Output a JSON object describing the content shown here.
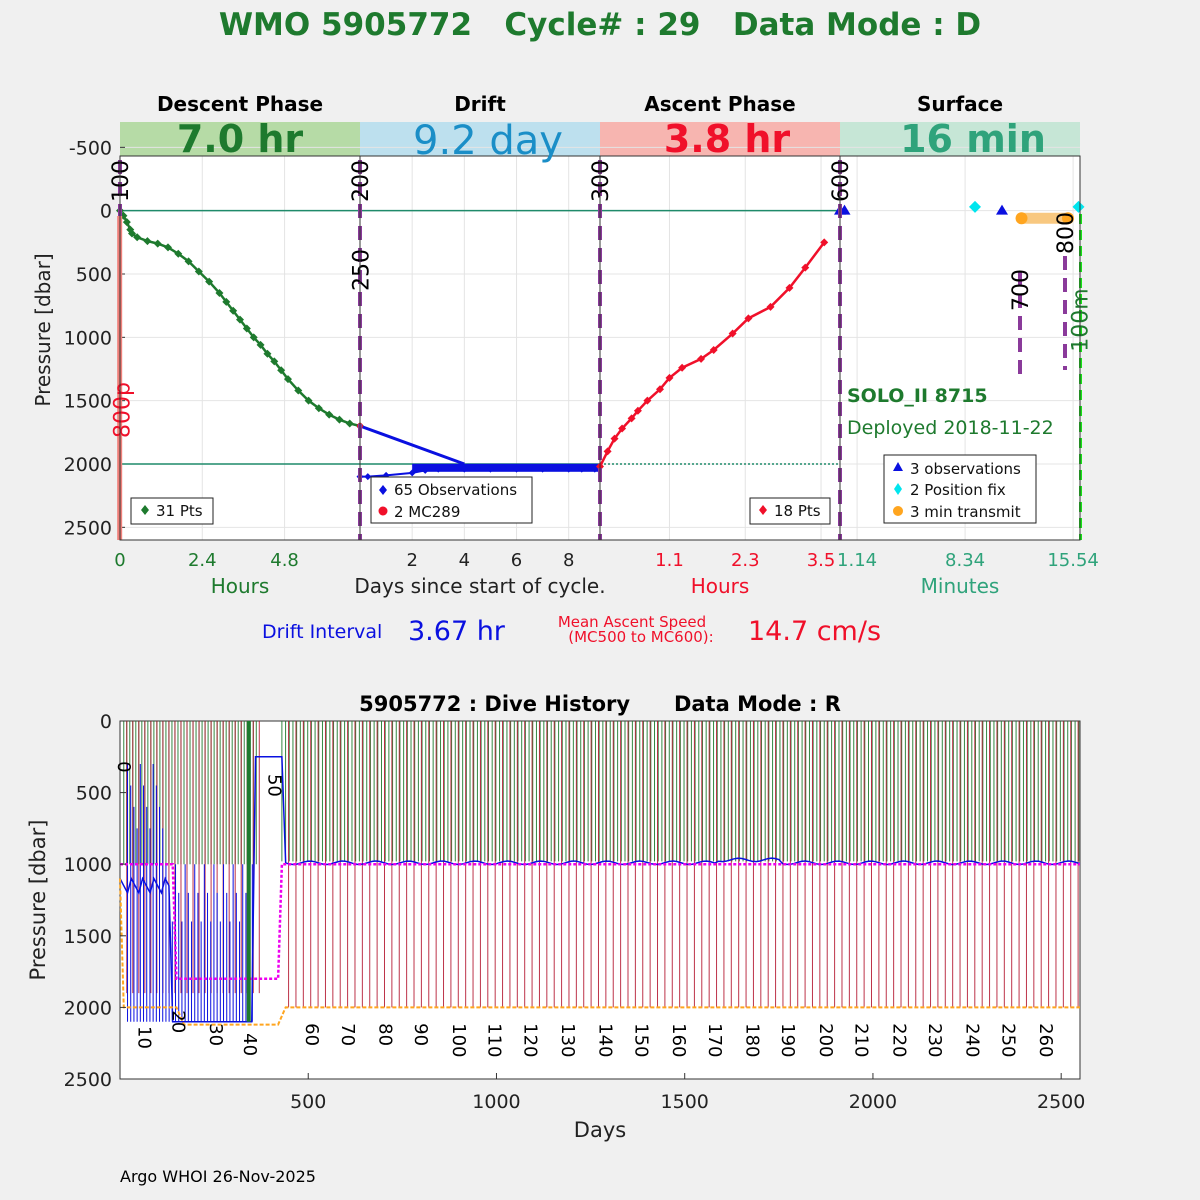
{
  "header": {
    "title": "WMO 5905772   Cycle# : 29   Data Mode : D",
    "title_color": "#1e7a2e"
  },
  "phases": [
    {
      "name": "Descent Phase",
      "duration": "7.0 hr",
      "band_color": "#b6dba6",
      "text_color": "#1e7a2e"
    },
    {
      "name": "Drift",
      "duration": "9.2 day",
      "band_color": "#bde0ee",
      "text_color": "#1a8ec7"
    },
    {
      "name": "Ascent Phase",
      "duration": "3.8 hr",
      "band_color": "#f7b5b0",
      "text_color": "#f0102a"
    },
    {
      "name": "Surface",
      "duration": "16 min",
      "band_color": "#c6e6d6",
      "text_color": "#2fa37b"
    }
  ],
  "chart_data": [
    {
      "type": "line",
      "panel": "cycle",
      "ylabel": "Pressure [dbar]",
      "ylim": [
        2600,
        -700
      ],
      "yticks": [
        "-500",
        "0",
        "500",
        "1000",
        "1500",
        "2000",
        "2500"
      ],
      "ytick_values": [
        -500,
        0,
        500,
        1000,
        1500,
        2000,
        2500
      ],
      "xlabel_center": "Days since start of cycle.",
      "grid": true,
      "reference_lines": {
        "surface": 0,
        "park": 2000
      },
      "panels": [
        {
          "name": "Descent",
          "xlabel": "Hours",
          "xlabel_color": "#1e7a2e",
          "xlim": [
            0,
            7.0
          ],
          "xticks": [
            0,
            2.4,
            4.8
          ],
          "xtick_labels": [
            "0",
            "2.4",
            "4.8"
          ],
          "color": "#1e7a2e",
          "legend": "31 Pts",
          "legend_color": "#1e7a2e",
          "legend_marker": "diamond",
          "x": [
            0,
            0.1,
            0.2,
            0.3,
            0.35,
            0.5,
            0.8,
            1.1,
            1.4,
            1.7,
            2.0,
            2.3,
            2.6,
            2.9,
            3.1,
            3.3,
            3.5,
            3.7,
            3.9,
            4.1,
            4.3,
            4.5,
            4.7,
            4.9,
            5.2,
            5.5,
            5.8,
            6.1,
            6.4,
            6.7,
            7.0
          ],
          "y": [
            0,
            40,
            90,
            150,
            180,
            210,
            240,
            260,
            290,
            340,
            400,
            480,
            560,
            650,
            720,
            790,
            860,
            930,
            1000,
            1060,
            1130,
            1190,
            1260,
            1330,
            1420,
            1500,
            1560,
            1610,
            1650,
            1680,
            1700
          ]
        },
        {
          "name": "Drift",
          "xlim": [
            0,
            9.2
          ],
          "xticks": [
            2,
            4,
            6,
            8
          ],
          "xtick_labels": [
            "2",
            "4",
            "6",
            "8"
          ],
          "color": "#0a10e0",
          "legend": [
            "65 Observations",
            "2 MC289"
          ],
          "legend_colors": [
            "#0a10e0",
            "#f0102a"
          ],
          "legend_markers": [
            "diamond",
            "circle"
          ],
          "x": [
            0,
            0.3,
            1.0,
            2.0,
            2.5,
            3.0,
            3.5,
            4.0,
            4.5,
            5.0,
            5.5,
            6.0,
            6.5,
            7.0,
            7.5,
            8.0,
            8.5,
            9.0,
            9.2
          ],
          "y": [
            2100,
            2100,
            2090,
            2070,
            2050,
            2040,
            2030,
            2040,
            2030,
            2040,
            2030,
            2040,
            2030,
            2040,
            2030,
            2040,
            2040,
            2040,
            2020
          ],
          "slope_line": {
            "x": [
              0,
              4.0
            ],
            "y": [
              1700,
              2000
            ]
          },
          "bar_band": {
            "x": [
              2.0,
              9.2
            ],
            "y": 2030
          },
          "mc289": {
            "x": [
              0,
              9.2
            ],
            "y": [
              1700,
              2020
            ]
          }
        },
        {
          "name": "Ascent",
          "xlabel": "Hours",
          "xlabel_color": "#f0102a",
          "xlim": [
            0,
            3.8
          ],
          "xticks": [
            1.1,
            2.3,
            3.5
          ],
          "xtick_labels": [
            "1.1",
            "2.3",
            "3.5"
          ],
          "color": "#f0102a",
          "legend": "18 Pts",
          "legend_color": "#f0102a",
          "legend_marker": "diamond",
          "x": [
            0,
            0.12,
            0.23,
            0.35,
            0.5,
            0.6,
            0.75,
            0.95,
            1.1,
            1.3,
            1.6,
            1.8,
            2.1,
            2.35,
            2.7,
            3.0,
            3.25,
            3.55
          ],
          "y": [
            2020,
            1900,
            1800,
            1720,
            1640,
            1580,
            1500,
            1410,
            1320,
            1240,
            1170,
            1100,
            970,
            850,
            760,
            610,
            450,
            250
          ]
        },
        {
          "name": "Surface",
          "xlabel": "Minutes",
          "xlabel_color": "#2fa37b",
          "xlim": [
            0,
            16
          ],
          "xticks": [
            1.14,
            8.34,
            15.54
          ],
          "xtick_labels": [
            "1.14",
            "8.34",
            "15.54"
          ],
          "legend": [
            "3 observations",
            "2 Position fix",
            "3 min transmit"
          ],
          "legend_colors": [
            "#0a10e0",
            "#00e5ee",
            "#ffa51f"
          ],
          "legend_markers": [
            "triangle",
            "diamond",
            "circle"
          ],
          "observations": {
            "x": [
              0.0,
              0.3,
              10.8
            ],
            "y": [
              0,
              0,
              0
            ]
          },
          "position_fix": {
            "x": [
              9.0,
              15.9
            ],
            "y": [
              -30,
              -30
            ]
          },
          "transmit": {
            "x": [
              12.1,
              15.2
            ],
            "y": [
              60,
              60
            ]
          },
          "float_label": "SOLO_II 8715",
          "deploy_label": "Deployed 2018-11-22",
          "label_color": "#1e7a2e"
        }
      ],
      "mission_code_markers": [
        {
          "label": "100",
          "panel": 0,
          "x": 0,
          "color": "#000000"
        },
        {
          "label": "800p",
          "panel": 0,
          "x": 0.02,
          "color": "#f0102a"
        },
        {
          "label": "200",
          "panel": 1,
          "x": 0,
          "color": "#000000"
        },
        {
          "label": "250",
          "panel": 1,
          "x": 0.02,
          "color": "#000000"
        },
        {
          "label": "300",
          "panel": 2,
          "x": 0,
          "color": "#000000"
        },
        {
          "label": "600",
          "panel": 3,
          "x": 0,
          "color": "#000000"
        },
        {
          "label": "700",
          "panel": 3,
          "x": 12.0,
          "color": "#000000"
        },
        {
          "label": "800",
          "panel": 3,
          "x": 15.0,
          "color": "#000000"
        },
        {
          "label": "100m",
          "panel": 3,
          "x": 15.9,
          "color": "#1e7a2e"
        }
      ]
    },
    {
      "type": "line",
      "panel": "history",
      "title": "5905772 : Dive History      Data Mode : R",
      "xlabel": "Days",
      "ylabel": "Pressure [dbar]",
      "xlim": [
        0,
        2550
      ],
      "ylim": [
        2500,
        0
      ],
      "xticks": [
        500,
        1000,
        1500,
        2000,
        2500
      ],
      "yticks": [
        0,
        500,
        1000,
        1500,
        2000,
        2500
      ],
      "cycle_labels": [
        {
          "label": "0",
          "x": 10,
          "y": 280
        },
        {
          "label": "10",
          "x": 65,
          "y": 2130
        },
        {
          "label": "20",
          "x": 155,
          "y": 2020
        },
        {
          "label": "30",
          "x": 255,
          "y": 2110
        },
        {
          "label": "40",
          "x": 345,
          "y": 2180
        },
        {
          "label": "50",
          "x": 410,
          "y": 370
        },
        {
          "label": "60",
          "x": 510,
          "y": 2110
        },
        {
          "label": "70",
          "x": 605,
          "y": 2110
        },
        {
          "label": "80",
          "x": 705,
          "y": 2110
        },
        {
          "label": "90",
          "x": 800,
          "y": 2110
        },
        {
          "label": "100",
          "x": 900,
          "y": 2110
        },
        {
          "label": "110",
          "x": 995,
          "y": 2110
        },
        {
          "label": "120",
          "x": 1090,
          "y": 2110
        },
        {
          "label": "130",
          "x": 1190,
          "y": 2110
        },
        {
          "label": "140",
          "x": 1290,
          "y": 2110
        },
        {
          "label": "150",
          "x": 1385,
          "y": 2110
        },
        {
          "label": "160",
          "x": 1485,
          "y": 2110
        },
        {
          "label": "170",
          "x": 1580,
          "y": 2110
        },
        {
          "label": "180",
          "x": 1680,
          "y": 2110
        },
        {
          "label": "190",
          "x": 1775,
          "y": 2110
        },
        {
          "label": "200",
          "x": 1875,
          "y": 2110
        },
        {
          "label": "210",
          "x": 1970,
          "y": 2110
        },
        {
          "label": "220",
          "x": 2070,
          "y": 2110
        },
        {
          "label": "230",
          "x": 2165,
          "y": 2110
        },
        {
          "label": "240",
          "x": 2265,
          "y": 2110
        },
        {
          "label": "250",
          "x": 2360,
          "y": 2110
        },
        {
          "label": "260",
          "x": 2460,
          "y": 2110
        }
      ],
      "colors": {
        "surface_marks": "#1e7a2e",
        "profile_marks": "#b2102a",
        "drift_trace": "#0a10e0",
        "park_setting": "#ee00ee",
        "profile_depth": "#ffa51f",
        "highlight": "#1e7a2e"
      }
    }
  ],
  "summary": {
    "drift_label": "Drift Interval",
    "drift_value": "3.67 hr",
    "drift_color": "#0a10e0",
    "ascent_label_line1": "Mean Ascent Speed",
    "ascent_label_line2": "(MC500 to MC600):",
    "ascent_value": "14.7 cm/s",
    "ascent_color": "#f0102a"
  },
  "footer": {
    "credit": "Argo WHOI 26-Nov-2025"
  }
}
